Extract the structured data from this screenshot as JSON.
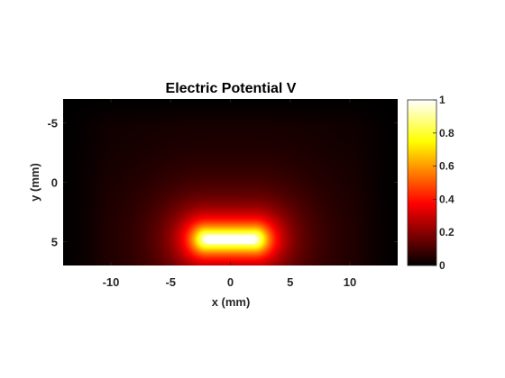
{
  "chart_data": {
    "type": "heatmap",
    "title": "Electric Potential V",
    "xlabel": "x (mm)",
    "ylabel": "y (mm)",
    "xlim": [
      -14,
      14
    ],
    "ylim": [
      -7,
      7
    ],
    "y_direction": "reversed",
    "xticks": [
      -10,
      -5,
      0,
      5,
      10
    ],
    "yticks": [
      -5,
      0,
      5
    ],
    "colormap": "hot",
    "colorbar": {
      "range": [
        0,
        1
      ],
      "ticks": [
        0,
        0.2,
        0.4,
        0.6,
        0.8,
        1
      ],
      "tick_labels": [
        "0",
        "0.2",
        "0.4",
        "0.6",
        "0.8",
        "1"
      ]
    },
    "source_electrode": {
      "x_range": [
        -2,
        2
      ],
      "y": 4.8,
      "value": 1
    },
    "grid": false
  }
}
